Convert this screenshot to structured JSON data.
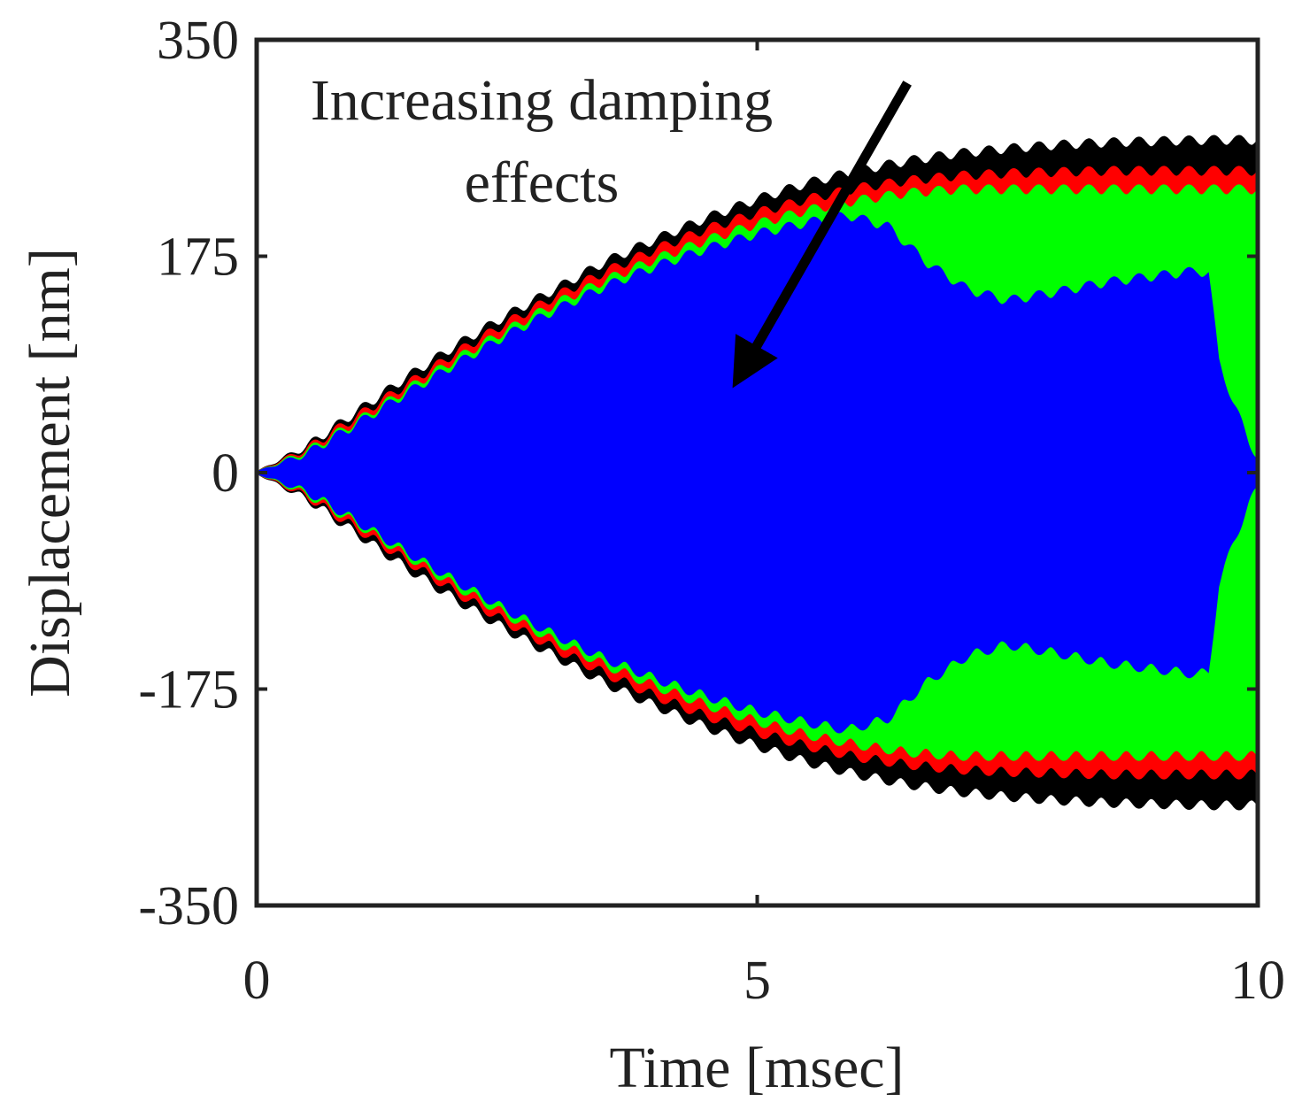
{
  "chart_data": {
    "type": "area",
    "title": "",
    "xlabel": "Time [msec]",
    "ylabel": "Displacement [nm]",
    "xlim": [
      0,
      10
    ],
    "ylim": [
      -350,
      350
    ],
    "xticks": [
      0,
      5,
      10
    ],
    "yticks": [
      350,
      175,
      0,
      -175,
      -350
    ],
    "grid": false,
    "annotation": {
      "lines": [
        "Increasing damping",
        "effects"
      ],
      "arrow_from": [
        6.5,
        315
      ],
      "arrow_to": [
        4.85,
        82
      ]
    },
    "series": [
      {
        "name": "black",
        "color": "#000000",
        "envelope_x": [
          0,
          0.5,
          1,
          1.5,
          2,
          2.5,
          3,
          3.5,
          4,
          4.5,
          5,
          5.5,
          6,
          6.5,
          7,
          7.5,
          8,
          8.5,
          9,
          9.5,
          10
        ],
        "upper": [
          0,
          20,
          48,
          76,
          102,
          126,
          148,
          170,
          188,
          205,
          220,
          233,
          243,
          251,
          257,
          261,
          264,
          266,
          267,
          268,
          268
        ],
        "lower": [
          0,
          -20,
          -48,
          -76,
          -102,
          -126,
          -148,
          -170,
          -188,
          -205,
          -220,
          -233,
          -243,
          -251,
          -257,
          -261,
          -264,
          -266,
          -267,
          -268,
          -268
        ]
      },
      {
        "name": "red",
        "color": "#ff0000",
        "envelope_x": [
          0,
          0.5,
          1,
          1.5,
          2,
          2.5,
          3,
          3.5,
          4,
          4.5,
          5,
          5.5,
          6,
          6.5,
          7,
          7.5,
          8,
          8.5,
          9,
          9.5,
          10
        ],
        "upper": [
          0,
          18,
          44,
          70,
          96,
          120,
          142,
          162,
          180,
          196,
          209,
          220,
          229,
          235,
          239,
          241,
          242,
          243,
          243,
          243,
          243
        ],
        "lower": [
          0,
          -18,
          -44,
          -70,
          -96,
          -120,
          -142,
          -162,
          -180,
          -196,
          -209,
          -220,
          -229,
          -235,
          -239,
          -241,
          -242,
          -243,
          -243,
          -243,
          -243
        ]
      },
      {
        "name": "green",
        "color": "#00ff00",
        "envelope_x": [
          0,
          0.5,
          1,
          1.5,
          2,
          2.5,
          3,
          3.5,
          4,
          4.5,
          5,
          5.5,
          6,
          6.5,
          7,
          7.5,
          8,
          8.5,
          9,
          9.5,
          10
        ],
        "upper": [
          0,
          16,
          40,
          66,
          91,
          114,
          136,
          155,
          172,
          187,
          200,
          211,
          219,
          225,
          228,
          228,
          228,
          228,
          228,
          228,
          228
        ],
        "lower": [
          0,
          -16,
          -40,
          -66,
          -91,
          -114,
          -136,
          -155,
          -172,
          -187,
          -200,
          -211,
          -219,
          -225,
          -228,
          -228,
          -228,
          -228,
          -228,
          -228,
          -228
        ]
      },
      {
        "name": "blue",
        "color": "#0000ff",
        "envelope_x": [
          0,
          0.5,
          1,
          1.5,
          2,
          2.5,
          3,
          3.5,
          4,
          4.5,
          5,
          5.5,
          5.9,
          6.3,
          6.7,
          7.1,
          7.5,
          8,
          8.5,
          9,
          9.4,
          9.5,
          9.6,
          9.75,
          9.9,
          10
        ],
        "upper": [
          0,
          14,
          38,
          63,
          87,
          110,
          131,
          150,
          166,
          180,
          192,
          201,
          207,
          198,
          168,
          147,
          138,
          145,
          153,
          158,
          162,
          160,
          90,
          55,
          25,
          10
        ],
        "lower": [
          0,
          -14,
          -38,
          -63,
          -87,
          -110,
          -131,
          -150,
          -166,
          -180,
          -192,
          -201,
          -207,
          -198,
          -168,
          -147,
          -138,
          -145,
          -153,
          -158,
          -162,
          -160,
          -90,
          -55,
          -25,
          -10
        ]
      }
    ]
  }
}
